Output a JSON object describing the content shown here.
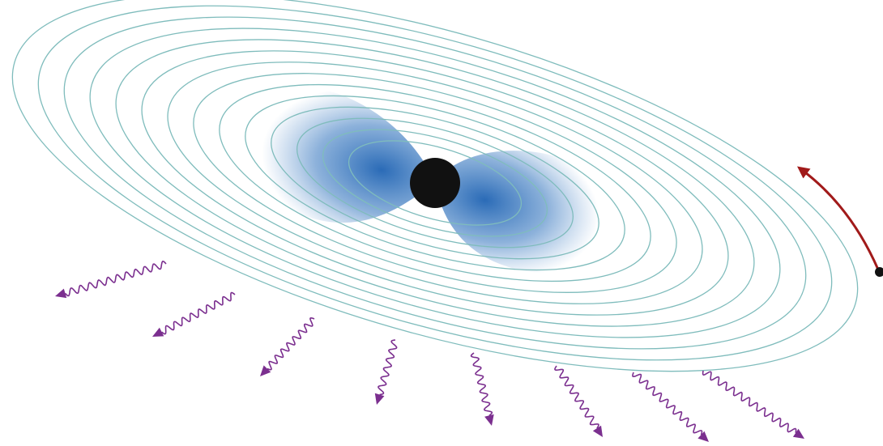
{
  "diagram": {
    "ring_count": 14,
    "wave_count": 8,
    "colors": {
      "background": "#ffffff",
      "orbit": "#7fbcbc",
      "lobe": "#1f63b3",
      "core": "#111111",
      "rotation_arrow": "#a11a1a",
      "emission": "#7b2f8f",
      "marker": "#111111"
    },
    "icons": {
      "core": "black-hole-icon",
      "rotation": "curved-arrow-icon",
      "emission": "wavy-arrow-icon"
    }
  }
}
